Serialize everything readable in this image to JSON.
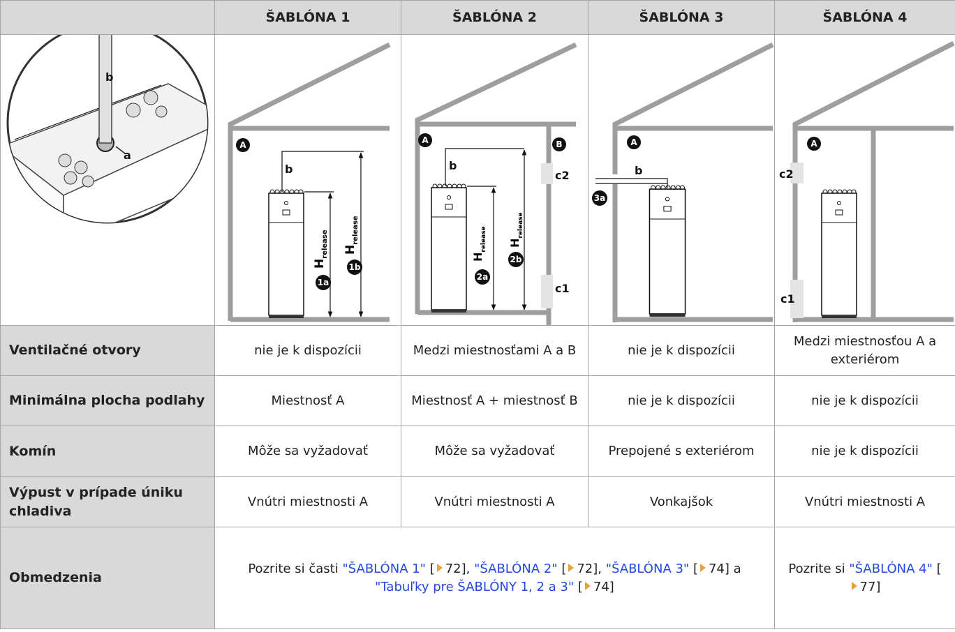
{
  "table": {
    "columns": [
      "ŠABLÓNA 1",
      "ŠABLÓNA 2",
      "ŠABLÓNA 3",
      "ŠABLÓNA 4"
    ],
    "diagrams": {
      "detail": {
        "pipe": "b",
        "port": "a"
      },
      "templates": [
        {
          "room_a": "A",
          "pipe": "b",
          "h_unit": {
            "h": "H",
            "sub": "release",
            "tag": "1a"
          },
          "h_pipe": {
            "h": "H",
            "sub": "release",
            "tag": "1b"
          }
        },
        {
          "room_a": "A",
          "room_b": "B",
          "pipe": "b",
          "c2": "c2",
          "c1": "c1",
          "h_unit": {
            "h": "H",
            "sub": "release",
            "tag": "2a"
          },
          "h_pipe": {
            "h": "H",
            "sub": "release",
            "tag": "2b"
          }
        },
        {
          "room_a": "A",
          "pipe": "b",
          "outlet": "3a"
        },
        {
          "room_a": "A",
          "c2": "c2",
          "c1": "c1"
        }
      ]
    },
    "rows": [
      {
        "label": "Ventilačné otvory",
        "cells": [
          "nie je k dispozícii",
          "Medzi miestnosťami A a B",
          "nie je k dispozícii",
          "Medzi miestnosťou A a exteriérom"
        ]
      },
      {
        "label": "Minimálna plocha podlahy",
        "cells": [
          "Miestnosť A",
          "Miestnosť A + miestnosť B",
          "nie je k dispozícii",
          "nie je k dispozícii"
        ]
      },
      {
        "label": "Komín",
        "cells": [
          "Môže sa vyžadovať",
          "Môže sa vyžadovať",
          "Prepojené s exteriérom",
          "nie je k dispozícii"
        ]
      },
      {
        "label": "Výpust v prípade úniku chladiva",
        "cells": [
          "Vnútri miestnosti A",
          "Vnútri miestnosti A",
          "Vonkajšok",
          "Vnútri miestnosti A"
        ]
      }
    ],
    "restrictions": {
      "label": "Obmedzenia",
      "templates_1_3": [
        {
          "text": "Pozrite si časti "
        },
        {
          "text": "\"ŠABLÓNA 1\"",
          "link": true
        },
        {
          "text": " ["
        },
        {
          "text": "72], ",
          "ref": true
        },
        {
          "text": "\"ŠABLÓNA 2\"",
          "link": true
        },
        {
          "text": " ["
        },
        {
          "text": "72], ",
          "ref": true
        },
        {
          "text": "\"ŠABLÓNA 3\"",
          "link": true
        },
        {
          "text": " ["
        },
        {
          "text": "74] a ",
          "ref": true
        },
        {
          "text": "\"Tabuľky pre ŠABLÓNY 1, 2 a 3\"",
          "link": true
        },
        {
          "text": " ["
        },
        {
          "text": "74]",
          "ref": true
        }
      ],
      "template_4": [
        {
          "text": "Pozrite si "
        },
        {
          "text": "\"ŠABLÓNA 4\"",
          "link": true
        },
        {
          "text": " ["
        },
        {
          "text": "77]",
          "ref": true
        }
      ]
    }
  }
}
